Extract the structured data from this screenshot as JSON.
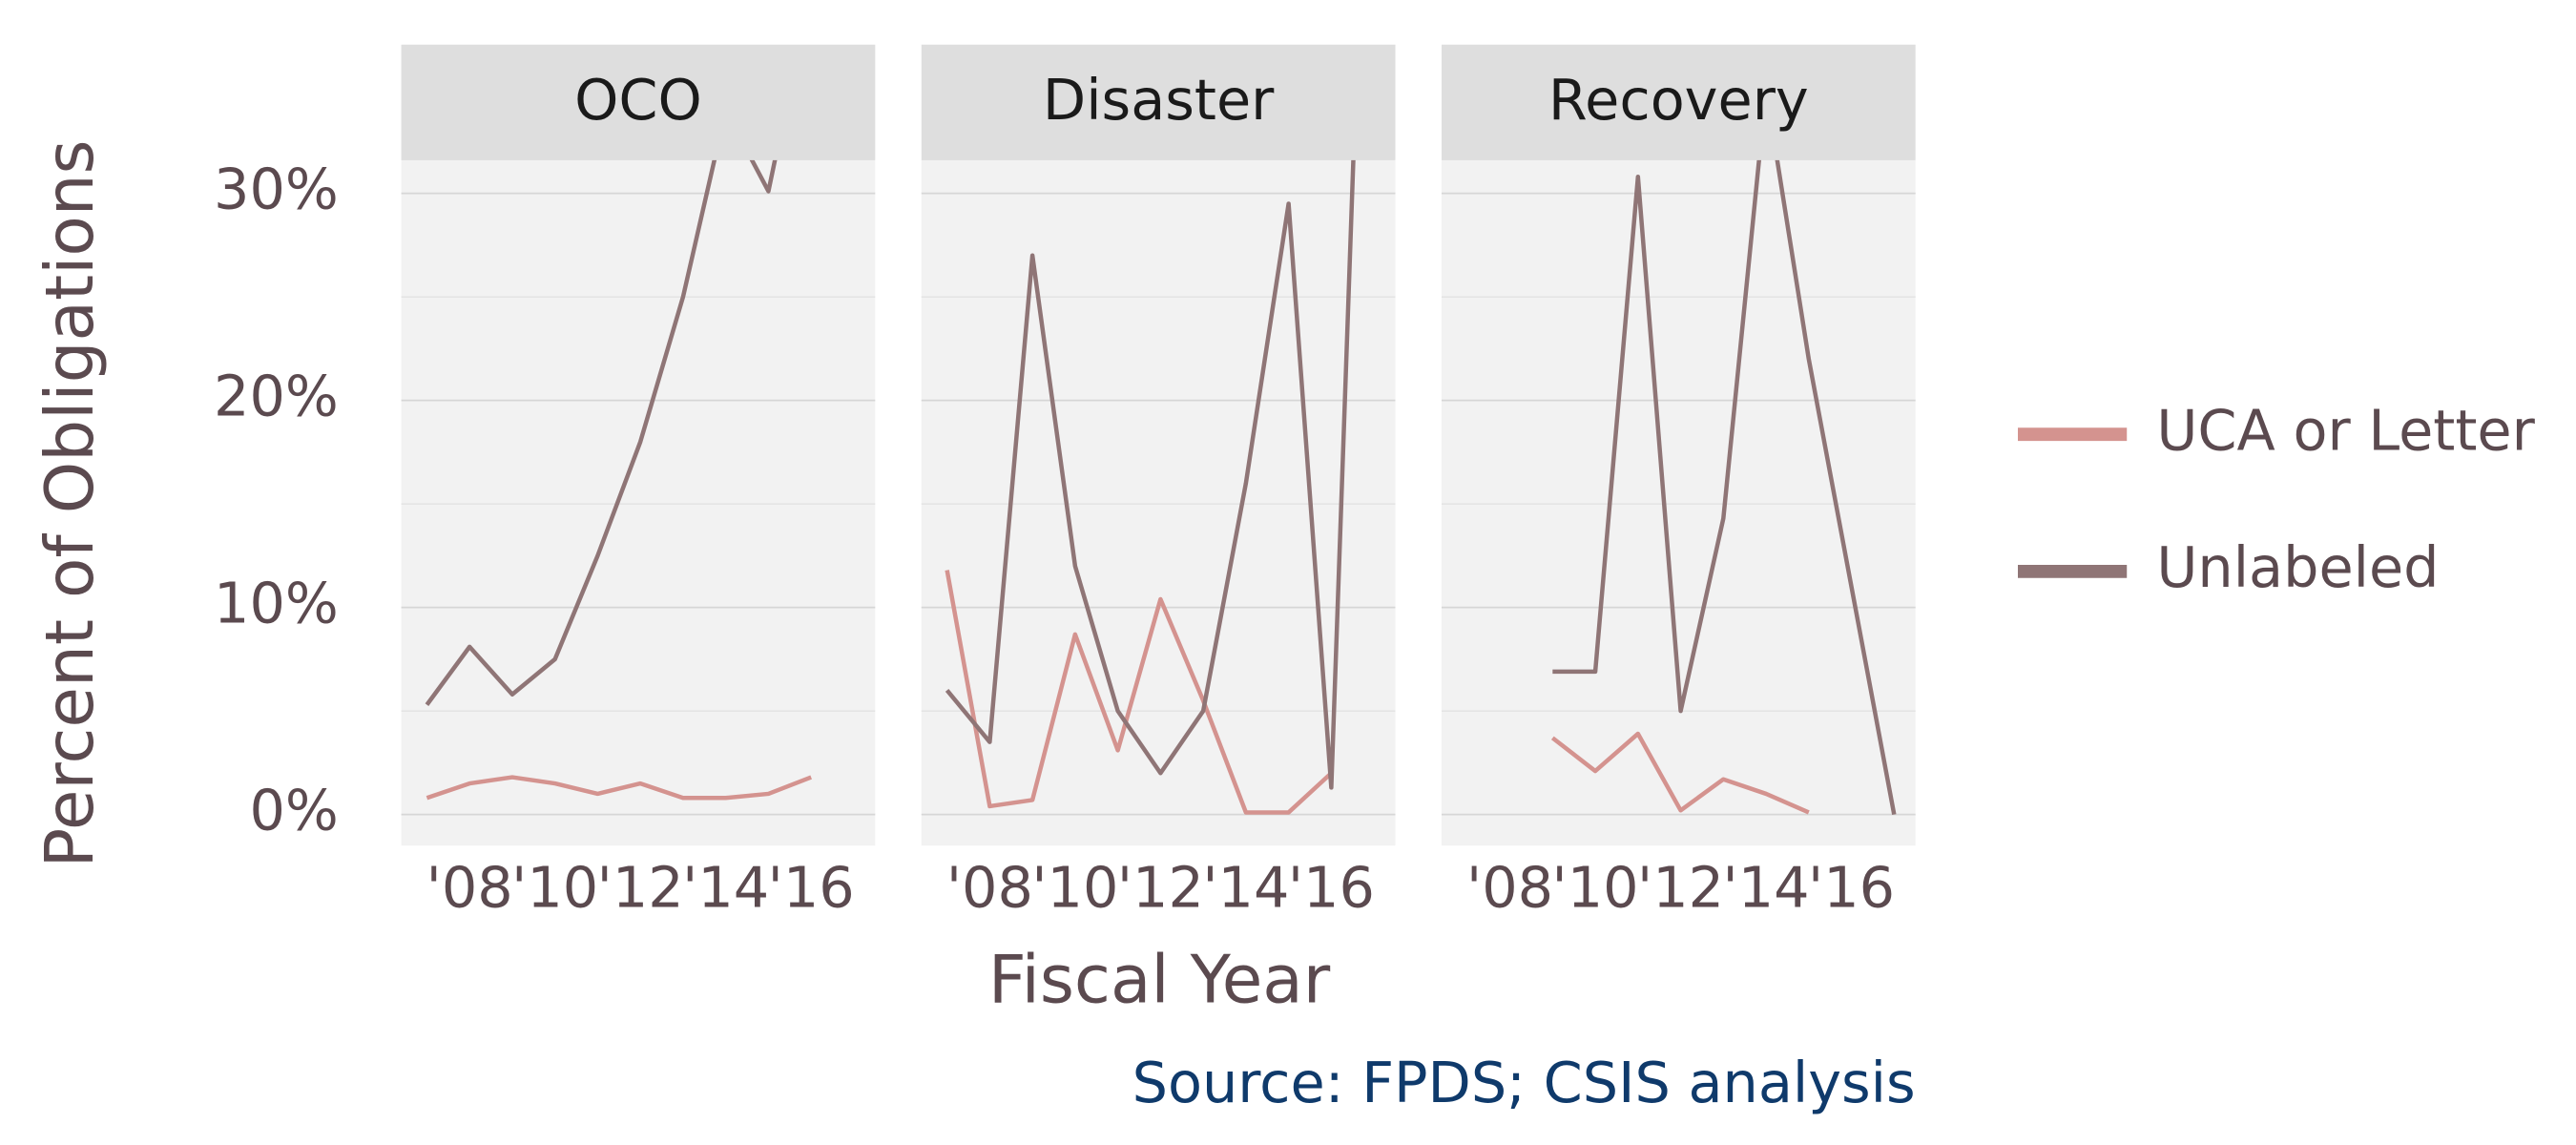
{
  "chart_data": {
    "type": "line",
    "y_label": "Percent of Obligations",
    "x_label": "Fiscal Year",
    "source": "Source: FPDS; CSIS analysis",
    "ylim": [
      -1.5,
      31.6
    ],
    "yticks": [
      {
        "value": 0,
        "label": "0%"
      },
      {
        "value": 10,
        "label": "10%"
      },
      {
        "value": 20,
        "label": "20%"
      },
      {
        "value": 30,
        "label": "30%"
      }
    ],
    "yminor": [
      5,
      15,
      25
    ],
    "xlim": [
      2006.4,
      2017.5
    ],
    "xticks": [
      {
        "value": 2008,
        "label": "'08"
      },
      {
        "value": 2010,
        "label": "'10"
      },
      {
        "value": 2012,
        "label": "'12"
      },
      {
        "value": 2014,
        "label": "'14"
      },
      {
        "value": 2016,
        "label": "'16"
      }
    ],
    "grid": true,
    "legend": "right",
    "series": [
      {
        "name": "UCA or Letter",
        "color": "#d4938f"
      },
      {
        "name": "Unlabeled",
        "color": "#8f7576"
      }
    ],
    "panels": [
      {
        "title": "OCO",
        "x": [
          2007,
          2008,
          2009,
          2010,
          2011,
          2012,
          2013,
          2014,
          2015,
          2016
        ],
        "series": [
          {
            "values": [
              0.8,
              1.5,
              1.8,
              1.5,
              1.0,
              1.5,
              0.8,
              0.8,
              1.0,
              1.8
            ]
          },
          {
            "values": [
              5.3,
              8.1,
              5.8,
              7.5,
              12.5,
              18.0,
              25.0,
              34.0,
              30.1,
              40.0
            ]
          }
        ]
      },
      {
        "title": "Disaster",
        "x": [
          2007,
          2008,
          2009,
          2010,
          2011,
          2012,
          2013,
          2014,
          2015,
          2016,
          2017
        ],
        "series": [
          {
            "values": [
              11.8,
              0.4,
              0.7,
              8.7,
              3.1,
              10.4,
              5.5,
              0.1,
              0.1,
              2.0,
              null
            ]
          },
          {
            "values": [
              6.0,
              3.5,
              27.0,
              12.0,
              5.0,
              2.0,
              5.0,
              16.0,
              29.5,
              1.3,
              60.0
            ]
          }
        ]
      },
      {
        "title": "Recovery",
        "x": [
          2009,
          2010,
          2011,
          2012,
          2013,
          2014,
          2015,
          2016,
          2017
        ],
        "series": [
          {
            "values": [
              3.7,
              2.1,
              3.9,
              0.2,
              1.7,
              1.0,
              0.1,
              null,
              null
            ]
          },
          {
            "values": [
              6.9,
              6.9,
              30.8,
              5.0,
              14.3,
              35.0,
              22.0,
              11.0,
              0.0
            ]
          }
        ]
      }
    ]
  }
}
